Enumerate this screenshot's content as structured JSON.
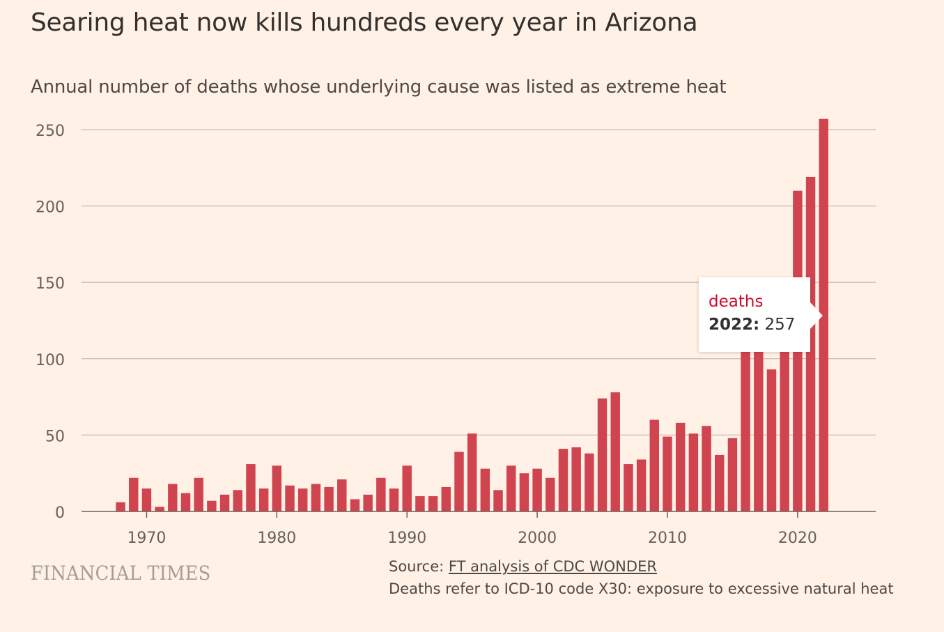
{
  "title": "Searing heat now kills hundreds every year in Arizona",
  "subtitle": "Annual number of deaths whose underlying cause was listed as extreme heat",
  "chart_data": {
    "type": "bar",
    "series": [
      {
        "name": "deaths",
        "color": "#D0444F",
        "x": [
          1968,
          1969,
          1970,
          1971,
          1972,
          1973,
          1974,
          1975,
          1976,
          1977,
          1978,
          1979,
          1980,
          1981,
          1982,
          1983,
          1984,
          1985,
          1986,
          1987,
          1988,
          1989,
          1990,
          1991,
          1992,
          1993,
          1994,
          1995,
          1996,
          1997,
          1998,
          1999,
          2000,
          2001,
          2002,
          2003,
          2004,
          2005,
          2006,
          2007,
          2008,
          2009,
          2010,
          2011,
          2012,
          2013,
          2014,
          2015,
          2016,
          2017,
          2018,
          2019,
          2020,
          2021,
          2022
        ],
        "values": [
          6,
          22,
          15,
          3,
          18,
          12,
          22,
          7,
          11,
          14,
          31,
          15,
          30,
          17,
          15,
          18,
          16,
          21,
          8,
          11,
          22,
          15,
          30,
          10,
          10,
          16,
          39,
          51,
          28,
          14,
          30,
          25,
          28,
          22,
          41,
          42,
          38,
          74,
          78,
          31,
          34,
          60,
          49,
          58,
          51,
          56,
          37,
          48,
          110,
          110,
          93,
          110,
          210,
          219,
          257
        ]
      }
    ],
    "x_ticks": [
      "1970",
      "1980",
      "1990",
      "2000",
      "2010",
      "2020"
    ],
    "y_ticks": [
      "0",
      "50",
      "100",
      "150",
      "200",
      "250"
    ],
    "ylim": [
      0,
      250
    ],
    "xlim": [
      1965,
      2026
    ],
    "grid": true,
    "xlabel": "",
    "ylabel": ""
  },
  "tooltip": {
    "series": "deaths",
    "year": "2022:",
    "value": "257"
  },
  "logo": "FINANCIAL TIMES",
  "source": {
    "prefix": "Source: ",
    "link": "FT analysis of CDC WONDER",
    "note": "Deaths refer to ICD-10 code X30: exposure to excessive natural heat"
  }
}
